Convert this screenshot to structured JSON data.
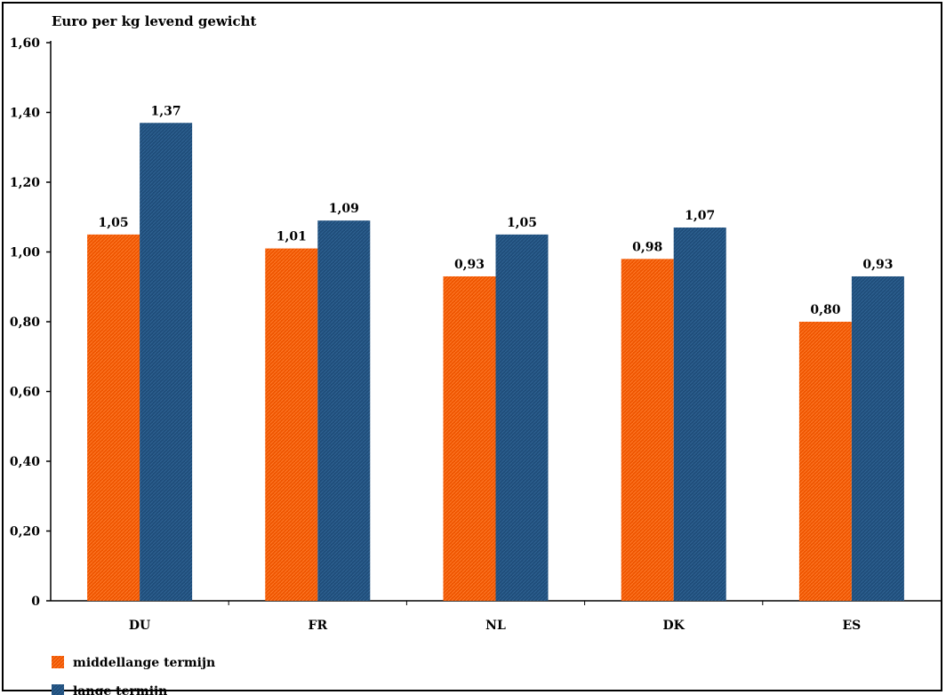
{
  "chart_data": {
    "type": "bar",
    "ylabel": "Euro per kg levend gewicht",
    "categories": [
      "DU",
      "FR",
      "NL",
      "DK",
      "ES"
    ],
    "series": [
      {
        "name": "middellange termijn",
        "color": "#ee5500",
        "values": [
          1.05,
          1.01,
          0.93,
          0.98,
          0.8
        ],
        "labels": [
          "1,05",
          "1,01",
          "0,93",
          "0,98",
          "0,80"
        ]
      },
      {
        "name": "lange termijn",
        "color": "#1f4d7a",
        "values": [
          1.37,
          1.09,
          1.05,
          1.07,
          0.93
        ],
        "labels": [
          "1,37",
          "1,09",
          "1,05",
          "1,07",
          "0,93"
        ]
      }
    ],
    "ylim": [
      0,
      1.6
    ],
    "yticks": [
      0,
      0.2,
      0.4,
      0.6,
      0.8,
      1.0,
      1.2,
      1.4,
      1.6
    ],
    "ytick_labels": [
      "0",
      "0,20",
      "0,40",
      "0,60",
      "0,80",
      "1,00",
      "1,20",
      "1,40",
      "1,60"
    ],
    "legend_position": "bottom-left",
    "grid": false
  }
}
